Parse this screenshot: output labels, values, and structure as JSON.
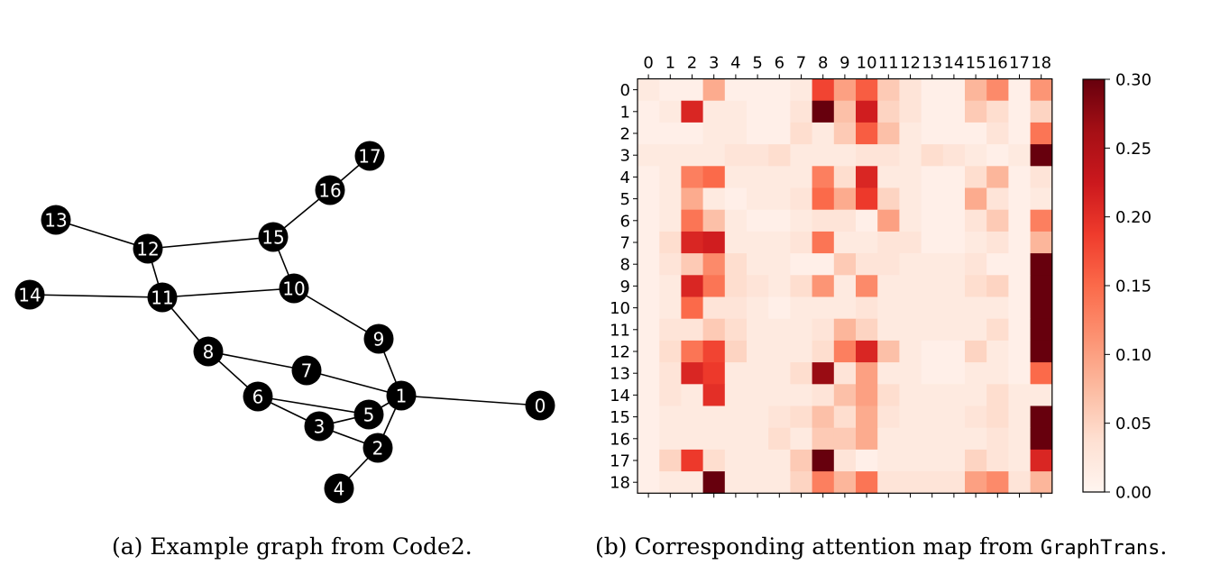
{
  "chart_data": [
    {
      "type": "graph",
      "nodes": [
        "0",
        "1",
        "2",
        "3",
        "4",
        "5",
        "6",
        "7",
        "8",
        "9",
        "10",
        "11",
        "12",
        "13",
        "14",
        "15",
        "16",
        "17"
      ],
      "edges": [
        [
          0,
          1
        ],
        [
          1,
          2
        ],
        [
          1,
          5
        ],
        [
          1,
          7
        ],
        [
          1,
          9
        ],
        [
          2,
          3
        ],
        [
          2,
          4
        ],
        [
          3,
          5
        ],
        [
          3,
          6
        ],
        [
          5,
          6
        ],
        [
          6,
          8
        ],
        [
          7,
          8
        ],
        [
          8,
          11
        ],
        [
          9,
          10
        ],
        [
          10,
          11
        ],
        [
          10,
          15
        ],
        [
          11,
          12
        ],
        [
          11,
          14
        ],
        [
          12,
          13
        ],
        [
          12,
          15
        ],
        [
          15,
          16
        ],
        [
          16,
          17
        ]
      ],
      "caption_prefix": "(a) Example graph from Code2."
    },
    {
      "type": "heatmap",
      "x_tick_labels": [
        "0",
        "1",
        "2",
        "3",
        "4",
        "5",
        "6",
        "7",
        "8",
        "9",
        "10",
        "11",
        "12",
        "13",
        "14",
        "15",
        "16",
        "17",
        "18"
      ],
      "y_tick_labels": [
        "0",
        "1",
        "2",
        "3",
        "4",
        "5",
        "6",
        "7",
        "8",
        "9",
        "10",
        "11",
        "12",
        "13",
        "14",
        "15",
        "16",
        "17",
        "18"
      ],
      "vmin": 0.0,
      "vmax": 0.3,
      "colormap": "Reds",
      "colorbar_ticks": [
        "0.00",
        "0.05",
        "0.10",
        "0.15",
        "0.20",
        "0.25",
        "0.30"
      ],
      "values": [
        [
          0.02,
          0.01,
          0.01,
          0.09,
          0.01,
          0.01,
          0.01,
          0.02,
          0.18,
          0.1,
          0.16,
          0.06,
          0.03,
          0.01,
          0.01,
          0.08,
          0.12,
          0.01,
          0.11
        ],
        [
          0.01,
          0.02,
          0.21,
          0.02,
          0.02,
          0.01,
          0.01,
          0.03,
          0.3,
          0.07,
          0.22,
          0.05,
          0.03,
          0.01,
          0.01,
          0.06,
          0.04,
          0.01,
          0.05
        ],
        [
          0.01,
          0.01,
          0.01,
          0.02,
          0.02,
          0.01,
          0.01,
          0.04,
          0.02,
          0.06,
          0.16,
          0.07,
          0.02,
          0.01,
          0.01,
          0.01,
          0.03,
          0.01,
          0.14
        ],
        [
          0.02,
          0.02,
          0.02,
          0.02,
          0.03,
          0.03,
          0.04,
          0.02,
          0.02,
          0.02,
          0.03,
          0.03,
          0.02,
          0.04,
          0.03,
          0.02,
          0.01,
          0.02,
          0.3
        ],
        [
          0.01,
          0.02,
          0.13,
          0.15,
          0.02,
          0.02,
          0.02,
          0.02,
          0.13,
          0.04,
          0.21,
          0.02,
          0.02,
          0.01,
          0.01,
          0.04,
          0.08,
          0.01,
          0.03
        ],
        [
          0.01,
          0.02,
          0.09,
          0.02,
          0.01,
          0.02,
          0.02,
          0.03,
          0.15,
          0.09,
          0.19,
          0.05,
          0.02,
          0.01,
          0.01,
          0.09,
          0.03,
          0.01,
          0.02
        ],
        [
          0.01,
          0.02,
          0.14,
          0.07,
          0.02,
          0.01,
          0.01,
          0.02,
          0.03,
          0.03,
          0.01,
          0.1,
          0.02,
          0.01,
          0.01,
          0.03,
          0.06,
          0.01,
          0.13
        ],
        [
          0.01,
          0.04,
          0.21,
          0.22,
          0.02,
          0.02,
          0.02,
          0.03,
          0.14,
          0.02,
          0.02,
          0.03,
          0.03,
          0.01,
          0.01,
          0.02,
          0.03,
          0.01,
          0.08
        ],
        [
          0.01,
          0.03,
          0.06,
          0.12,
          0.04,
          0.02,
          0.02,
          0.01,
          0.01,
          0.06,
          0.03,
          0.03,
          0.02,
          0.02,
          0.02,
          0.03,
          0.01,
          0.01,
          0.3
        ],
        [
          0.01,
          0.02,
          0.21,
          0.14,
          0.04,
          0.03,
          0.02,
          0.04,
          0.11,
          0.02,
          0.12,
          0.02,
          0.02,
          0.02,
          0.02,
          0.04,
          0.05,
          0.01,
          0.3
        ],
        [
          0.01,
          0.02,
          0.15,
          0.03,
          0.03,
          0.02,
          0.01,
          0.02,
          0.02,
          0.02,
          0.03,
          0.02,
          0.02,
          0.02,
          0.02,
          0.02,
          0.02,
          0.01,
          0.3
        ],
        [
          0.01,
          0.03,
          0.03,
          0.06,
          0.04,
          0.02,
          0.02,
          0.02,
          0.03,
          0.08,
          0.05,
          0.02,
          0.02,
          0.02,
          0.02,
          0.02,
          0.04,
          0.01,
          0.3
        ],
        [
          0.01,
          0.04,
          0.14,
          0.18,
          0.05,
          0.02,
          0.02,
          0.02,
          0.04,
          0.13,
          0.21,
          0.07,
          0.02,
          0.01,
          0.01,
          0.05,
          0.02,
          0.01,
          0.3
        ],
        [
          0.01,
          0.03,
          0.21,
          0.19,
          0.02,
          0.02,
          0.02,
          0.04,
          0.27,
          0.03,
          0.1,
          0.02,
          0.02,
          0.01,
          0.01,
          0.02,
          0.02,
          0.01,
          0.15
        ],
        [
          0.01,
          0.03,
          0.02,
          0.2,
          0.02,
          0.02,
          0.02,
          0.02,
          0.03,
          0.07,
          0.1,
          0.04,
          0.02,
          0.02,
          0.02,
          0.02,
          0.04,
          0.02,
          0.02
        ],
        [
          0.01,
          0.02,
          0.02,
          0.02,
          0.02,
          0.02,
          0.03,
          0.04,
          0.07,
          0.04,
          0.09,
          0.03,
          0.02,
          0.02,
          0.02,
          0.03,
          0.04,
          0.02,
          0.3
        ],
        [
          0.01,
          0.02,
          0.02,
          0.02,
          0.02,
          0.02,
          0.04,
          0.02,
          0.06,
          0.06,
          0.09,
          0.02,
          0.02,
          0.02,
          0.02,
          0.02,
          0.03,
          0.02,
          0.3
        ],
        [
          0.01,
          0.05,
          0.19,
          0.04,
          0.02,
          0.02,
          0.02,
          0.06,
          0.3,
          0.03,
          0.01,
          0.02,
          0.02,
          0.02,
          0.02,
          0.05,
          0.03,
          0.02,
          0.21
        ],
        [
          0.01,
          0.02,
          0.02,
          0.3,
          0.02,
          0.02,
          0.02,
          0.05,
          0.13,
          0.08,
          0.14,
          0.03,
          0.03,
          0.03,
          0.03,
          0.1,
          0.12,
          0.03,
          0.08
        ]
      ],
      "caption_prefix": "(b) Corresponding attention map from ",
      "caption_code": "GraphTrans",
      "caption_suffix": "."
    }
  ]
}
